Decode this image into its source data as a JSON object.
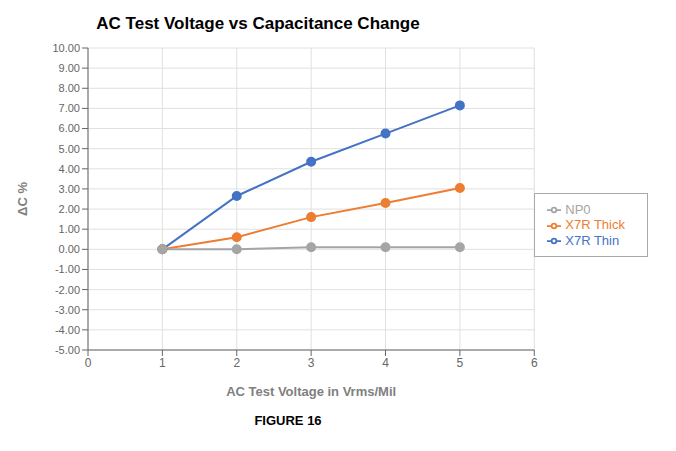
{
  "chart_data": {
    "type": "line",
    "title": "AC Test Voltage vs Capacitance Change",
    "xlabel": "AC Test Voltage in Vrms/Mil",
    "ylabel": "ΔC %",
    "annotations": [
      "FIGURE 16"
    ],
    "x": [
      1,
      2,
      3,
      4,
      5
    ],
    "series": [
      {
        "name": "X7R Thin",
        "color": "#4472C4",
        "marker": "circle",
        "line_style": "solid",
        "values": [
          0.0,
          2.65,
          4.35,
          5.75,
          7.15
        ]
      },
      {
        "name": "X7R Thick",
        "color": "#ED7D31",
        "marker": "circle",
        "line_style": "solid",
        "values": [
          0.0,
          0.6,
          1.6,
          2.3,
          3.05
        ]
      },
      {
        "name": "NP0",
        "color": "#A5A5A5",
        "marker": "circle",
        "line_style": "solid",
        "values": [
          0.0,
          0.0,
          0.1,
          0.1,
          0.1
        ]
      }
    ],
    "xlim": [
      0,
      6
    ],
    "xticks": [
      0,
      1,
      2,
      3,
      4,
      5,
      6
    ],
    "ylim": [
      -5.0,
      10.0
    ],
    "yticks": [
      {
        "value": -5.0,
        "label": "-5.00"
      },
      {
        "value": -4.0,
        "label": "-4.00"
      },
      {
        "value": -3.0,
        "label": "-3.00"
      },
      {
        "value": -2.0,
        "label": "-2.00"
      },
      {
        "value": -1.0,
        "label": "-1.00"
      },
      {
        "value": 0.0,
        "label": "0.00"
      },
      {
        "value": 1.0,
        "label": "1.00"
      },
      {
        "value": 2.0,
        "label": "2.00"
      },
      {
        "value": 3.0,
        "label": "3.00"
      },
      {
        "value": 4.0,
        "label": "4.00"
      },
      {
        "value": 5.0,
        "label": "5.00"
      },
      {
        "value": 6.0,
        "label": "6.00"
      },
      {
        "value": 7.0,
        "label": "7.00"
      },
      {
        "value": 8.0,
        "label": "8.00"
      },
      {
        "value": 9.0,
        "label": "9.00"
      },
      {
        "value": 10.0,
        "label": "10.00"
      }
    ],
    "grid": true,
    "legend": "right"
  }
}
